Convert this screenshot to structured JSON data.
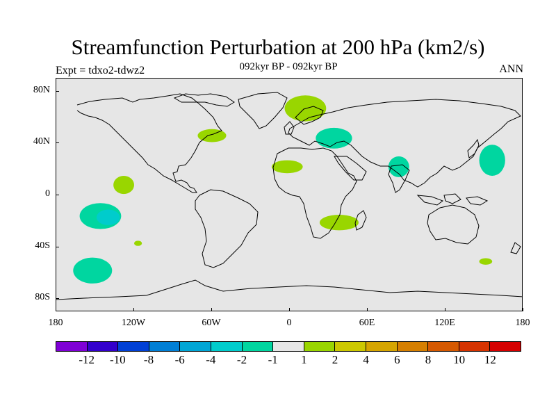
{
  "title": "Streamfunction Perturbation at 200 hPa (km2/s)",
  "subtitle": "092kyr BP - 092kyr BP",
  "left_string": "Expt = tdxo2-tdwz2",
  "right_string": "ANN",
  "map": {
    "projection": "cylindrical equidistant",
    "lon_range": [
      -180,
      180
    ],
    "lat_range": [
      -90,
      90
    ],
    "ocean_land_fill": "#e6e6e6",
    "coastline_color": "#000000",
    "y_ticks": [
      {
        "label": "80N",
        "lat": 80
      },
      {
        "label": "40N",
        "lat": 40
      },
      {
        "label": "0",
        "lat": 0
      },
      {
        "label": "40S",
        "lat": -40
      },
      {
        "label": "80S",
        "lat": -80
      }
    ],
    "x_ticks": [
      {
        "label": "180",
        "lon": -180
      },
      {
        "label": "120W",
        "lon": -120
      },
      {
        "label": "60W",
        "lon": -60
      },
      {
        "label": "0",
        "lon": 0
      },
      {
        "label": "60E",
        "lon": 60
      },
      {
        "label": "120E",
        "lon": 120
      },
      {
        "label": "180",
        "lon": 180
      }
    ],
    "anomaly_regions": [
      {
        "name": "arctic-europe-positive",
        "lon": 12,
        "lat": 67,
        "rlon": 16,
        "rlat": 10,
        "level": 1.5,
        "color": "#99d600"
      },
      {
        "name": "newfoundland-positive",
        "lon": -60,
        "lat": 46,
        "rlon": 11,
        "rlat": 5,
        "level": 1.5,
        "color": "#99d600"
      },
      {
        "name": "black-sea-negative",
        "lon": 34,
        "lat": 44,
        "rlon": 14,
        "rlat": 8,
        "level": -1.5,
        "color": "#00d6a0"
      },
      {
        "name": "north-africa-positive",
        "lon": -2,
        "lat": 22,
        "rlon": 12,
        "rlat": 5,
        "level": 1.5,
        "color": "#99d600"
      },
      {
        "name": "india-negative",
        "lon": 84,
        "lat": 22,
        "rlon": 8,
        "rlat": 8,
        "level": -1.5,
        "color": "#00d6a0"
      },
      {
        "name": "west-pacific-negative",
        "lon": 156,
        "lat": 27,
        "rlon": 10,
        "rlat": 12,
        "level": -1.5,
        "color": "#00d6a0"
      },
      {
        "name": "east-pacific-positive",
        "lon": -128,
        "lat": 8,
        "rlon": 8,
        "rlat": 7,
        "level": 1.5,
        "color": "#99d600"
      },
      {
        "name": "south-pacific-negative",
        "lon": -146,
        "lat": -16,
        "rlon": 16,
        "rlat": 10,
        "level": -2.5,
        "color": "#00d6a0"
      },
      {
        "name": "south-pacific-core",
        "lon": -140,
        "lat": -17,
        "rlon": 9,
        "rlat": 6,
        "level": -3,
        "color": "#00cccc"
      },
      {
        "name": "small-south-pacific-positive",
        "lon": -117,
        "lat": -37,
        "rlon": 3,
        "rlat": 2,
        "level": 1.5,
        "color": "#99d600"
      },
      {
        "name": "madagascar-positive",
        "lon": 38,
        "lat": -21,
        "rlon": 15,
        "rlat": 6,
        "level": 1.5,
        "color": "#99d600"
      },
      {
        "name": "southern-ocean-negative",
        "lon": -152,
        "lat": -58,
        "rlon": 15,
        "rlat": 10,
        "level": -1.5,
        "color": "#00d6a0"
      },
      {
        "name": "tasman-positive",
        "lon": 151,
        "lat": -51,
        "rlon": 5,
        "rlat": 2.5,
        "level": 1.5,
        "color": "#99d600"
      }
    ]
  },
  "colorbar": {
    "colors": [
      "#7f00d6",
      "#3300cc",
      "#0040d6",
      "#007fd6",
      "#00a6d6",
      "#00cccc",
      "#00d6a0",
      "#e6e6e6",
      "#99d600",
      "#ccc800",
      "#d6a500",
      "#d67f00",
      "#d65900",
      "#d63300",
      "#d60000"
    ],
    "labels": [
      "-12",
      "-10",
      "-8",
      "-6",
      "-4",
      "-2",
      "-1",
      "1",
      "2",
      "4",
      "6",
      "8",
      "10",
      "12"
    ]
  }
}
